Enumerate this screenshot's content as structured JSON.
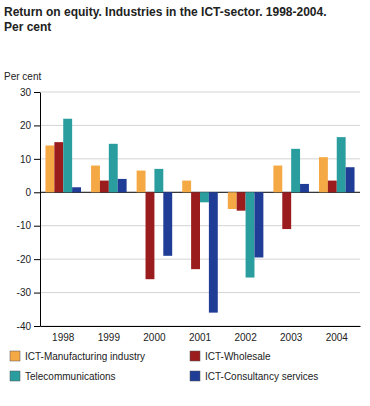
{
  "chart_data": {
    "type": "bar",
    "title": "Return on equity. Industries in the ICT-sector. 1998-2004.",
    "subtitle": "Per cent",
    "y_label": "Per cent",
    "categories": [
      "1998",
      "1999",
      "2000",
      "2001",
      "2002",
      "2003",
      "2004"
    ],
    "series": [
      {
        "name": "ICT-Manufacturing industry",
        "color": "#f5a944",
        "values": [
          14,
          8,
          6.5,
          3.5,
          -5,
          8,
          10.5
        ]
      },
      {
        "name": "ICT-Wholesale",
        "color": "#9b1c1c",
        "values": [
          15,
          3.5,
          -26,
          -23,
          -5.5,
          -11,
          3.5
        ]
      },
      {
        "name": "Telecommunications",
        "color": "#2a9d9f",
        "values": [
          22,
          14.5,
          7,
          -3,
          -25.5,
          13,
          16.5
        ]
      },
      {
        "name": "ICT-Consultancy services",
        "color": "#1f3c96",
        "values": [
          1.5,
          4,
          -19,
          -36,
          -19.5,
          2.5,
          7.5
        ]
      }
    ],
    "ylim": [
      -40,
      30
    ],
    "yticks": [
      -40,
      -30,
      -20,
      -10,
      0,
      10,
      20,
      30
    ],
    "grid": true,
    "legend": "bottom"
  }
}
